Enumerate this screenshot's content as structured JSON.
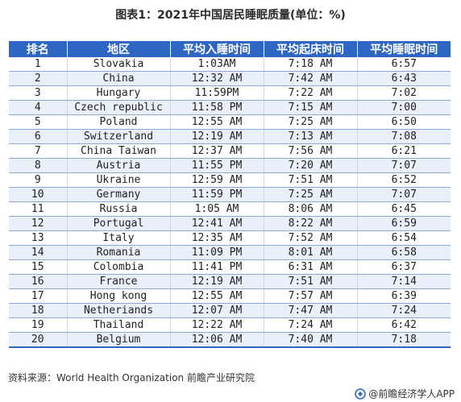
{
  "title": "图表1：2021年中国居民睡眠质量(单位：%)",
  "table": {
    "headers": [
      "排名",
      "地区",
      "平均入睡时间",
      "平均起床时间",
      "平均睡眠时间"
    ],
    "rows": [
      [
        "1",
        "Slovakia",
        "1:03AM",
        "7:18 AM",
        "6:57"
      ],
      [
        "2",
        "China",
        "12:32 AM",
        "7:42 AM",
        "6:43"
      ],
      [
        "3",
        "Hungary",
        "11:59PM",
        "7:22 AM",
        "7:02"
      ],
      [
        "4",
        "Czech republic",
        "11:58 PM",
        "7:15 AM",
        "7:00"
      ],
      [
        "5",
        "Poland",
        "12:55 AM",
        "7:25 AM",
        "6:50"
      ],
      [
        "6",
        "Switzerland",
        "12:19 AM",
        "7:13 AM",
        "7:08"
      ],
      [
        "7",
        "China Taiwan",
        "12:37 AM",
        "7:56 AM",
        "6:21"
      ],
      [
        "8",
        "Austria",
        "11:55 PM",
        "7:20 AM",
        "7:07"
      ],
      [
        "9",
        "Ukraine",
        "12:59 AM",
        "7:51 AM",
        "6:52"
      ],
      [
        "10",
        "Germany",
        "11:59 PM",
        "7:25 AM",
        "7:07"
      ],
      [
        "11",
        "Russia",
        "1:05 AM",
        "8:06 AM",
        "6:45"
      ],
      [
        "12",
        "Portugal",
        "12:41 AM",
        "8:22 AM",
        "6:59"
      ],
      [
        "13",
        "Italy",
        "12:35 AM",
        "7:52 AM",
        "6:54"
      ],
      [
        "14",
        "Romania",
        "11:09 PM",
        "8:01 AM",
        "6:58"
      ],
      [
        "15",
        "Colombia",
        "11:41 PM",
        "6:31 AM",
        "6:37"
      ],
      [
        "16",
        "France",
        "12:19 AM",
        "7:51 AM",
        "7:14"
      ],
      [
        "17",
        "Hong kong",
        "12:55 AM",
        "7:57 AM",
        "6:39"
      ],
      [
        "18",
        "Netheriands",
        "12:07 AM",
        "7:47 AM",
        "7:24"
      ],
      [
        "19",
        "Thailand",
        "12:22 AM",
        "7:24 AM",
        "6:42"
      ],
      [
        "20",
        "Belgium",
        "12:06 AM",
        "7:40 AM",
        "7:18"
      ]
    ]
  },
  "source": "资料来源：World Health Organization 前瞻产业研究院",
  "brand": {
    "label": "@前瞻经济学人APP",
    "logo_icon": "qianzhan-logo-icon"
  },
  "colors": {
    "header_bg": "#2f66c4",
    "row_alt": "#eaf0fa",
    "rule": "#8aa8dc"
  }
}
